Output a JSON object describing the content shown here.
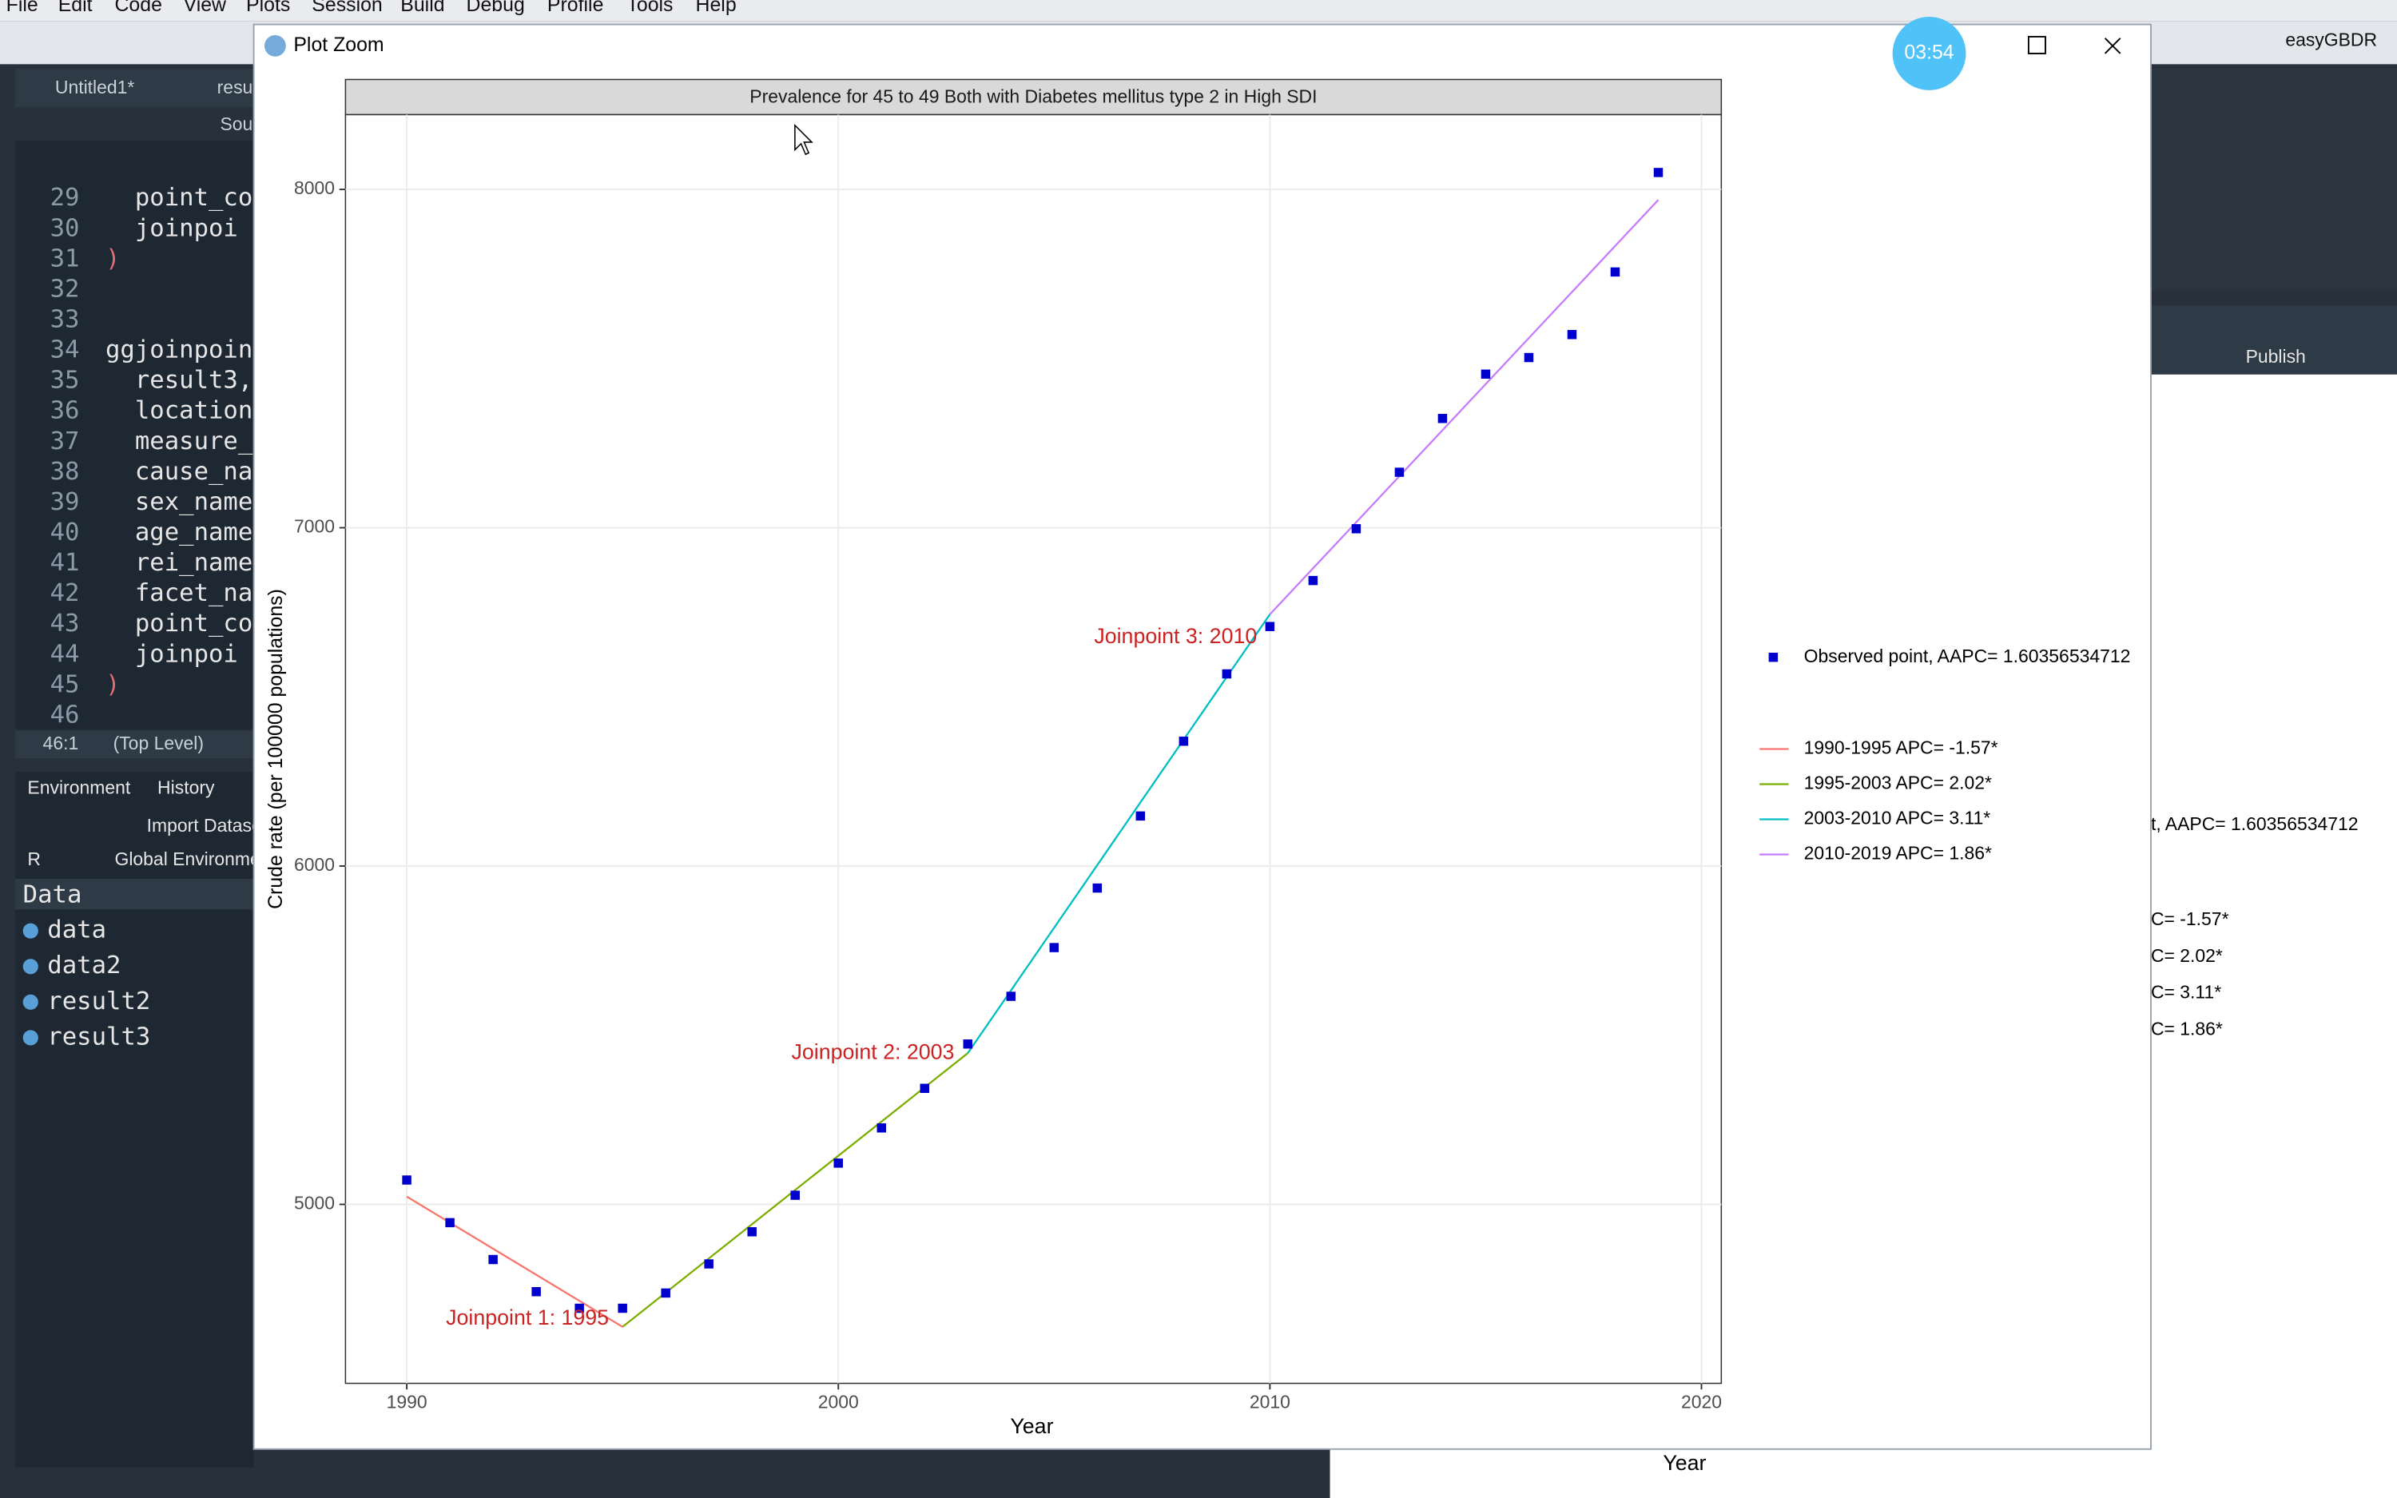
{
  "menu": [
    "File",
    "Edit",
    "Code",
    "View",
    "Plots",
    "Session",
    "Build",
    "Debug",
    "Profile",
    "Tools",
    "Help"
  ],
  "user": "easyGBDR",
  "editor": {
    "tabs": [
      "Untitled1*",
      "resul"
    ],
    "source_label": "Sou",
    "lines": [
      {
        "n": "29",
        "text": "  point_co"
      },
      {
        "n": "30",
        "text": "  joinpoi"
      },
      {
        "n": "31",
        "text": ")"
      },
      {
        "n": "32"
      },
      {
        "n": "33"
      },
      {
        "n": "34",
        "text": "ggjoinpoin"
      },
      {
        "n": "35",
        "text": "  result3,"
      },
      {
        "n": "36",
        "text": "  location"
      },
      {
        "n": "37",
        "text": "  measure_"
      },
      {
        "n": "38",
        "text": "  cause_na"
      },
      {
        "n": "39",
        "text": "  sex_name"
      },
      {
        "n": "40",
        "text": "  age_name"
      },
      {
        "n": "41",
        "text": "  rei_name"
      },
      {
        "n": "42",
        "text": "  facet_na"
      },
      {
        "n": "43",
        "text": "  point_co"
      },
      {
        "n": "44",
        "text": "  joinpoi"
      },
      {
        "n": "45",
        "text": ")"
      },
      {
        "n": "46"
      }
    ],
    "status": [
      "46:1",
      "(Top Level)"
    ]
  },
  "environment": {
    "tabs": [
      "Environment",
      "History"
    ],
    "toolbar": [
      "Import Datase",
      "R",
      "Global Environme"
    ],
    "section": "Data",
    "items": [
      "data",
      "data2",
      "result2",
      "result3"
    ]
  },
  "right_pane": {
    "button": "Publish",
    "legend": [
      "t, AAPC= 1.60356534712",
      "C= -1.57*",
      "C= 2.02*",
      "C= 3.11*",
      "C= 1.86*"
    ],
    "xlabel": "Year"
  },
  "window": {
    "title": "Plot Zoom",
    "timer": "03:54"
  },
  "chart_data": {
    "type": "line",
    "title": "Prevalence for 45 to 49 Both with Diabetes mellitus type 2 in High SDI",
    "xlabel": "Year",
    "ylabel": "Crude rate (per 100000 populations)",
    "xlim": [
      1988.58,
      2020.46
    ],
    "ylim": [
      4471,
      8221
    ],
    "xticks": [
      1990,
      2000,
      2010,
      2020
    ],
    "yticks": [
      5000,
      6000,
      7000,
      8000
    ],
    "grid": true,
    "legend": "right",
    "series": [
      {
        "name": "Observed point, AAPC= 1.60356534712",
        "type": "scatter",
        "color": "#0000cc",
        "x": [
          1990,
          1991,
          1992,
          1993,
          1994,
          1995,
          1996,
          1997,
          1998,
          1999,
          2000,
          2001,
          2002,
          2003,
          2004,
          2005,
          2006,
          2007,
          2008,
          2009,
          2010,
          2011,
          2012,
          2013,
          2014,
          2015,
          2016,
          2017,
          2018,
          2019
        ],
        "values": [
          5072,
          4946,
          4837,
          4742,
          4693,
          4693,
          4738,
          4824,
          4919,
          5027,
          5122,
          5226,
          5343,
          5474,
          5615,
          5759,
          5935,
          6148,
          6369,
          6568,
          6708,
          6844,
          6997,
          7164,
          7323,
          7454,
          7503,
          7571,
          7756,
          8050
        ]
      },
      {
        "name": "1990-1995 APC= -1.57*",
        "type": "line",
        "color": "#f8766d",
        "x": [
          1990,
          1995
        ],
        "values": [
          5023,
          4638
        ]
      },
      {
        "name": "1995-2003 APC= 2.02*",
        "type": "line",
        "color": "#7cae00",
        "x": [
          1995,
          2003
        ],
        "values": [
          4638,
          5447
        ]
      },
      {
        "name": "2003-2010 APC= 3.11*",
        "type": "line",
        "color": "#00bfc4",
        "x": [
          2003,
          2010
        ],
        "values": [
          5447,
          6744
        ]
      },
      {
        "name": "2010-2019 APC= 1.86*",
        "type": "line",
        "color": "#c77cff",
        "x": [
          2010,
          2019
        ],
        "values": [
          6744,
          7969
        ]
      }
    ],
    "annotations": [
      "Joinpoint 1: 1995",
      "Joinpoint 2: 2003",
      "Joinpoint 3: 2010"
    ]
  }
}
